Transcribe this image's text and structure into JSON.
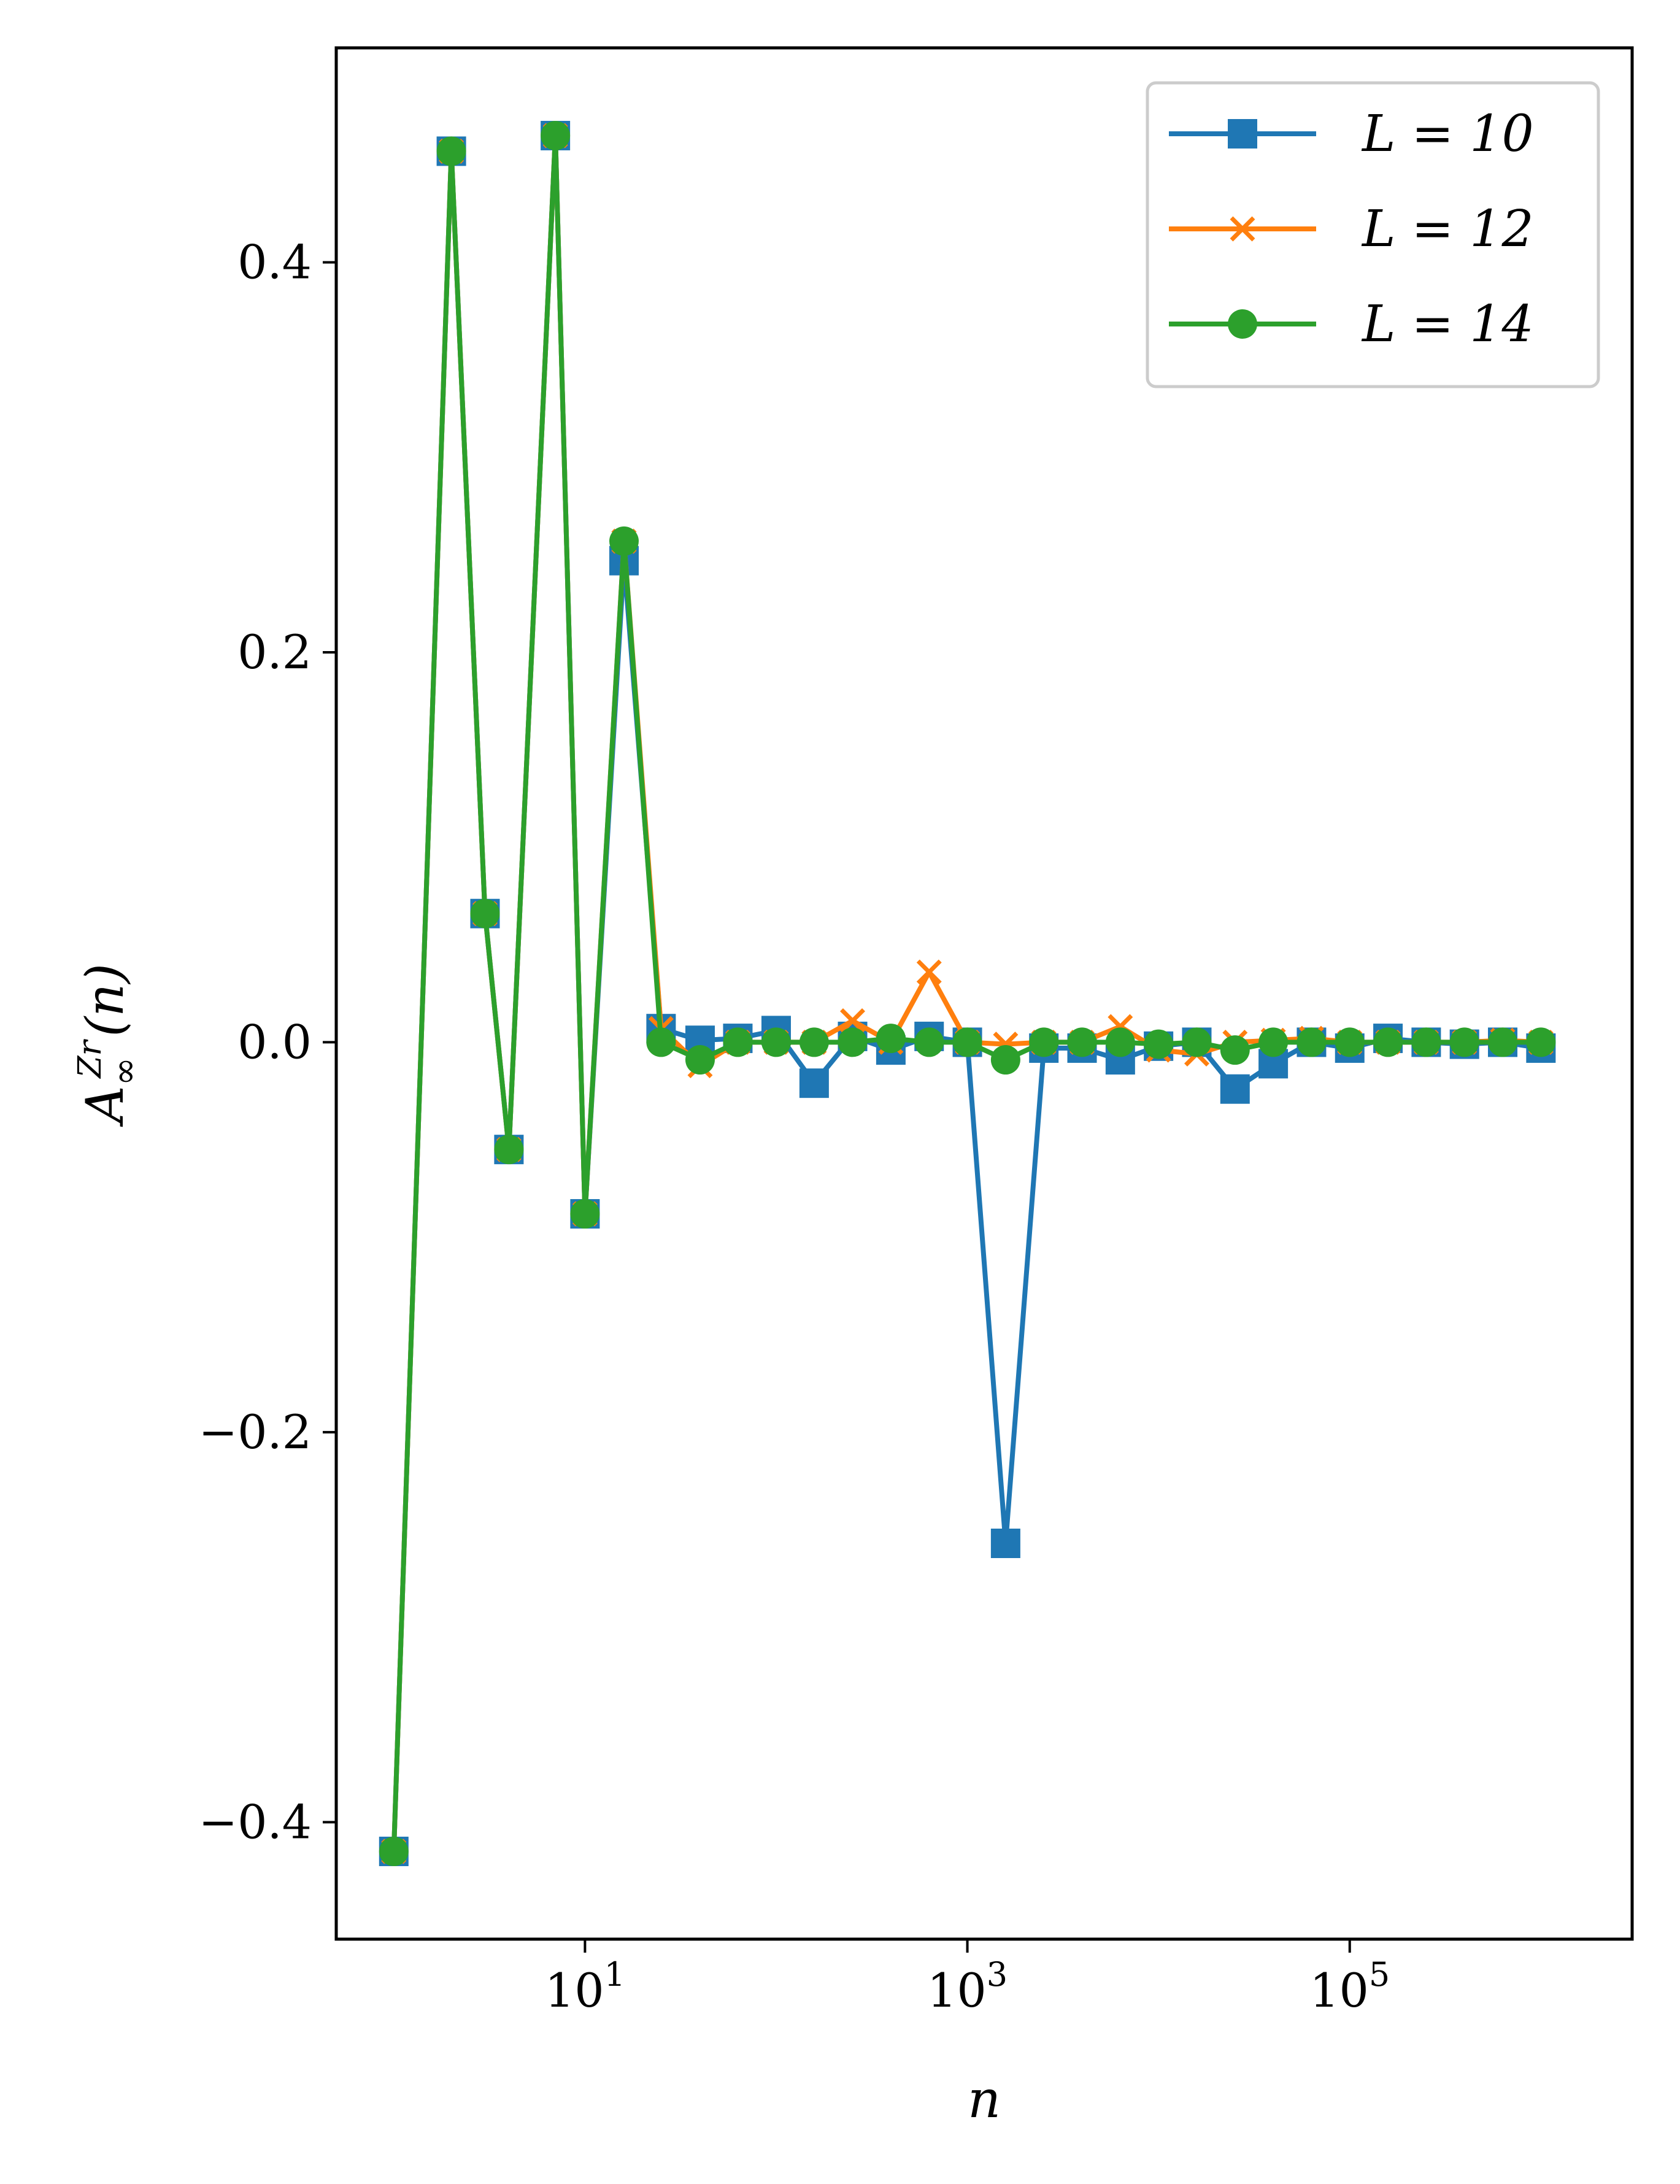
{
  "chart_data": {
    "type": "line",
    "x_scale": "log",
    "xlabel": "n",
    "ylabel": "A∞^{Z_r}(n)",
    "xlim": [
      0.5,
      3000000
    ],
    "ylim": [
      -0.46,
      0.51
    ],
    "xticks": [
      {
        "value": 10,
        "base": "10",
        "exp": "1"
      },
      {
        "value": 1000,
        "base": "10",
        "exp": "3"
      },
      {
        "value": 100000,
        "base": "10",
        "exp": "5"
      }
    ],
    "yticks": [
      {
        "value": -0.4,
        "label": "−0.4"
      },
      {
        "value": -0.2,
        "label": "−0.2"
      },
      {
        "value": 0.0,
        "label": "0.0"
      },
      {
        "value": 0.2,
        "label": "0.2"
      },
      {
        "value": 0.4,
        "label": "0.4"
      }
    ],
    "grid": false,
    "legend_position": "top-right",
    "x": [
      1,
      2,
      3,
      4,
      7,
      10,
      16,
      25,
      40,
      63,
      100,
      158,
      251,
      398,
      631,
      1000,
      1585,
      2512,
      3981,
      6310,
      10000,
      15849,
      25119,
      39811,
      63096,
      100000,
      158489,
      251189,
      398107,
      630957,
      1000000
    ],
    "series": [
      {
        "name": "L = 10",
        "color": "#1f77b4",
        "marker": "square",
        "values": [
          -0.415,
          0.457,
          0.066,
          -0.055,
          0.465,
          -0.088,
          0.247,
          0.007,
          0.001,
          0.002,
          0.006,
          -0.021,
          0.003,
          -0.004,
          0.003,
          0.0,
          -0.257,
          -0.003,
          -0.003,
          -0.009,
          -0.002,
          0.0,
          -0.024,
          -0.011,
          0.0,
          -0.003,
          0.002,
          0.0,
          -0.001,
          0.0,
          -0.003
        ]
      },
      {
        "name": "L = 12",
        "color": "#ff7f0e",
        "marker": "x",
        "values": [
          -0.415,
          0.457,
          0.066,
          -0.055,
          0.465,
          -0.088,
          0.257,
          0.007,
          -0.012,
          0.0,
          0.0,
          0.0,
          0.011,
          0.0,
          0.036,
          0.0,
          -0.001,
          0.0,
          0.0,
          0.008,
          -0.004,
          -0.006,
          0.0,
          0.001,
          0.002,
          0.0,
          0.0,
          0.0,
          0.0,
          0.001,
          0.0
        ]
      },
      {
        "name": "L = 14",
        "color": "#2ca02c",
        "marker": "circle",
        "values": [
          -0.415,
          0.457,
          0.066,
          -0.055,
          0.465,
          -0.088,
          0.257,
          0.0,
          -0.009,
          0.0,
          0.0,
          0.0,
          0.0,
          0.002,
          0.0,
          0.0,
          -0.009,
          0.0,
          0.0,
          0.0,
          -0.001,
          0.0,
          -0.004,
          0.0,
          0.0,
          0.0,
          0.0,
          0.0,
          0.0,
          0.0,
          0.0
        ]
      }
    ]
  }
}
